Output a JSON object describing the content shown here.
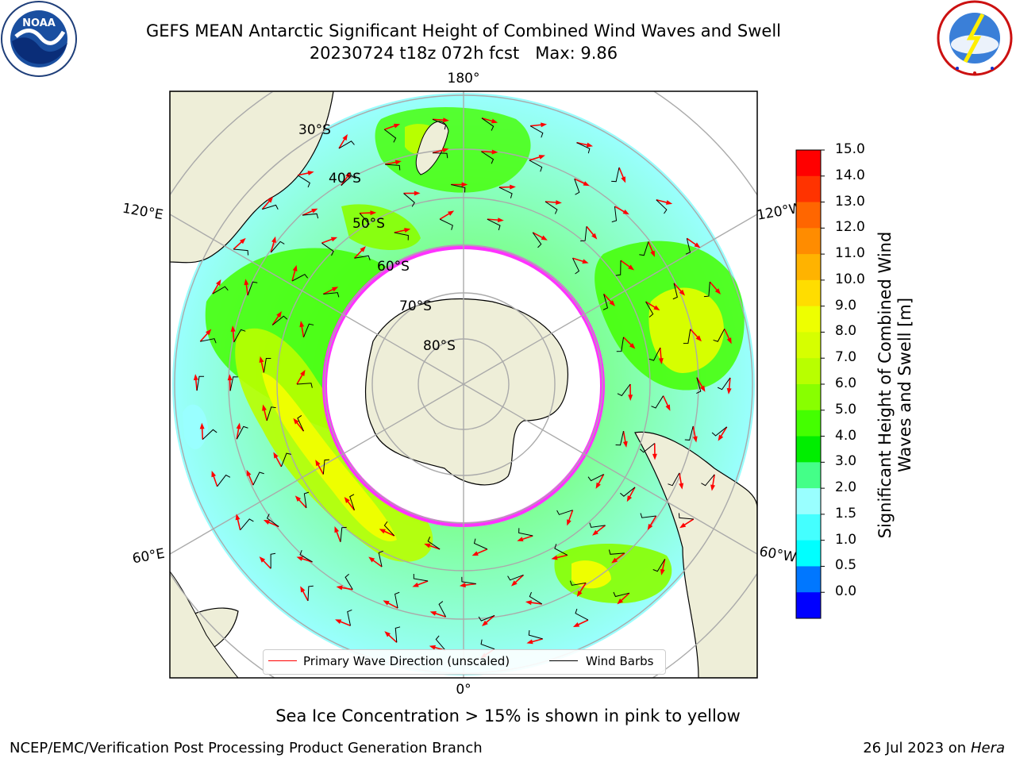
{
  "title": {
    "line1": "GEFS MEAN Antarctic Significant Height of Combined Wind Waves and Swell",
    "line2": "20230724 t18z 072h fcst   Max: 9.86"
  },
  "logos": {
    "noaa": "NOAA",
    "noaa_ring": "NATIONAL OCEANIC AND ATMOSPHERIC ADMINISTRATION · U.S. DEPARTMENT OF COMMERCE",
    "nws_ring": "NATIONAL WEATHER SERVICE"
  },
  "map": {
    "lon_labels": {
      "top": "180°",
      "upper_left": "120°E",
      "upper_right": "120°W",
      "lower_left": "60°E",
      "lower_right": "60°W",
      "bottom": "0°"
    },
    "lat_labels": [
      "30°S",
      "40°S",
      "50°S",
      "60°S",
      "70°S",
      "80°S"
    ]
  },
  "legend": {
    "wave_direction": "Primary Wave Direction (unscaled)",
    "wind_barbs": "Wind Barbs",
    "wave_color": "#ff0000",
    "barb_color": "#000000"
  },
  "colorbar": {
    "label": "Significant Height of Combined Wind Waves and Swell [m]",
    "ticks": [
      "15.0",
      "14.0",
      "13.0",
      "12.0",
      "11.0",
      "10.0",
      "9.0",
      "8.0",
      "7.0",
      "6.0",
      "5.0",
      "4.0",
      "3.0",
      "2.0",
      "1.5",
      "1.0",
      "0.5",
      "0.0"
    ],
    "colors": [
      "#ff0000",
      "#ff3300",
      "#ff6600",
      "#ff8c00",
      "#ffb300",
      "#ffdd00",
      "#eeff00",
      "#d6ff00",
      "#b8ff00",
      "#88ff00",
      "#44ff00",
      "#00ee00",
      "#44ff88",
      "#99ffff",
      "#44ffff",
      "#00ffff",
      "#0077ff",
      "#0000ff"
    ]
  },
  "caption": "Sea Ice Concentration > 15% is shown in pink to yellow",
  "footer": {
    "credit": "NCEP/EMC/Verification Post Processing Product Generation Branch",
    "date": "26 Jul 2023 on",
    "machine": "Hera"
  }
}
